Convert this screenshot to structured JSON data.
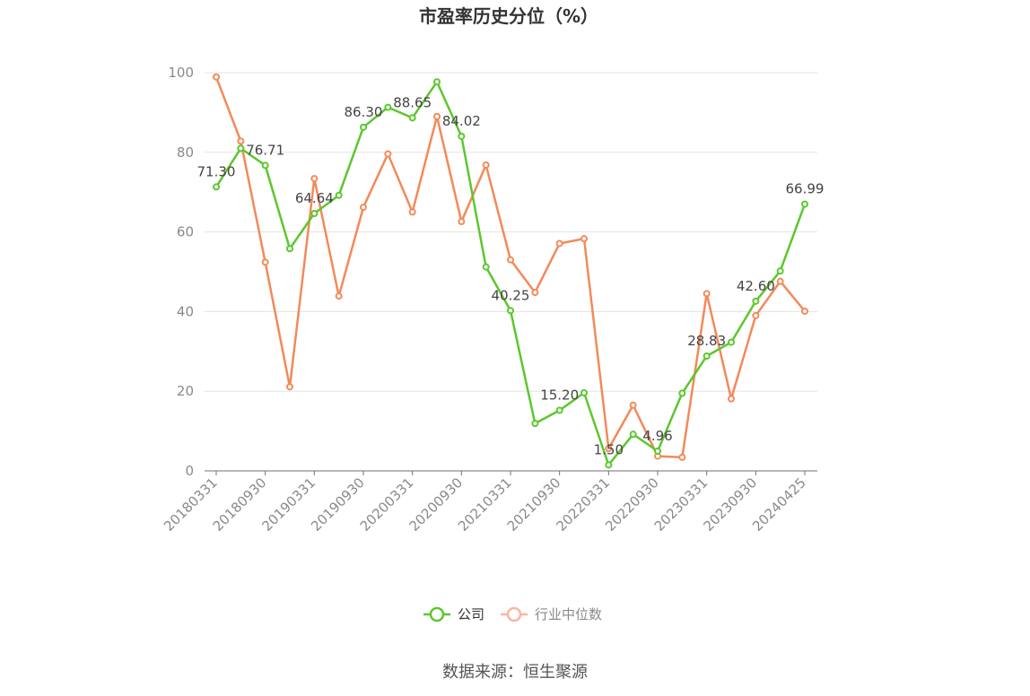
{
  "chart_data": {
    "type": "line",
    "title": "市盈率历史分位（%）",
    "source": "数据来源：恒生聚源",
    "ylim": [
      0,
      100
    ],
    "yticks": [
      "0",
      "20",
      "40",
      "60",
      "80",
      "100"
    ],
    "x": [
      "20180331",
      "20180630",
      "20180930",
      "20181231",
      "20190331",
      "20190630",
      "20190930",
      "20191231",
      "20200331",
      "20200630",
      "20200930",
      "20201231",
      "20210331",
      "20210630",
      "20210930",
      "20211231",
      "20220331",
      "20220630",
      "20220930",
      "20221231",
      "20230331",
      "20230630",
      "20230930",
      "20231231",
      "20240425"
    ],
    "xtick_labels": [
      "20180331",
      "20180930",
      "20190331",
      "20190930",
      "20200331",
      "20200930",
      "20210331",
      "20210930",
      "20220331",
      "20220930",
      "20230331",
      "20230930",
      "20240425"
    ],
    "grid": true,
    "legend_position": "bottom",
    "series": [
      {
        "name": "公司",
        "color": "#5cc72d",
        "values": [
          71.3,
          81.0,
          76.71,
          55.8,
          64.64,
          69.2,
          86.3,
          91.3,
          88.65,
          97.7,
          84.02,
          51.2,
          40.25,
          11.9,
          15.2,
          19.6,
          1.5,
          9.2,
          4.96,
          19.5,
          28.83,
          32.3,
          42.6,
          50.2,
          66.99
        ],
        "labels": [
          "71.30",
          "",
          "76.71",
          "",
          "64.64",
          "",
          "86.30",
          "",
          "88.65",
          "",
          "84.02",
          "",
          "40.25",
          "",
          "15.20",
          "",
          "1.50",
          "",
          "4.96",
          "",
          "28.83",
          "",
          "42.60",
          "",
          "66.99"
        ]
      },
      {
        "name": "行业中位数",
        "color": "#f28a5a",
        "values": [
          98.9,
          82.8,
          52.4,
          21.1,
          73.4,
          43.9,
          66.2,
          79.6,
          65.0,
          89.0,
          62.6,
          76.8,
          53.0,
          44.8,
          57.1,
          58.3,
          5.6,
          16.5,
          3.7,
          3.4,
          44.5,
          18.1,
          39.0,
          47.6,
          40.1
        ]
      }
    ]
  }
}
